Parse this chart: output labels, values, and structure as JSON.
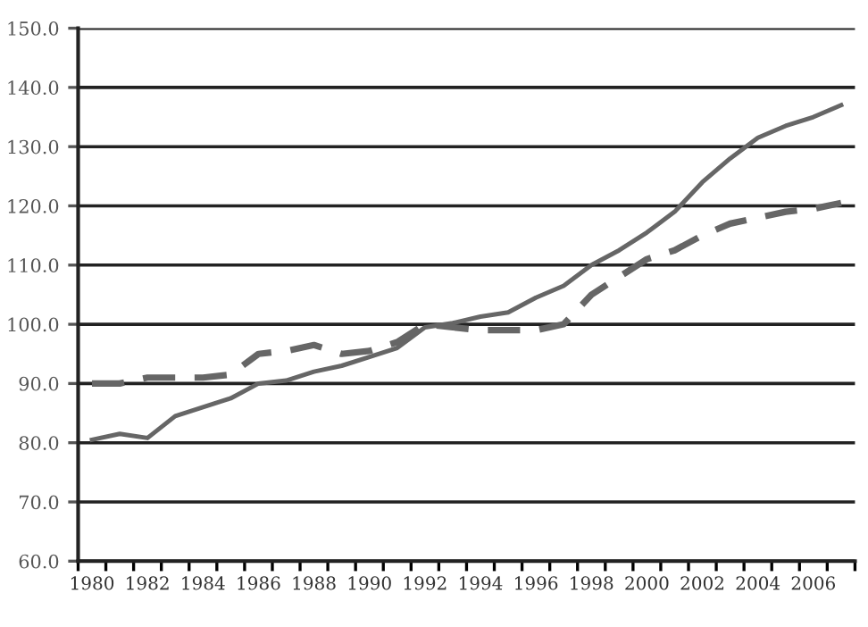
{
  "chart_data": {
    "type": "line",
    "categories": [
      "1980",
      null,
      "1982",
      null,
      "1984",
      null,
      "1986",
      null,
      "1988",
      null,
      "1990",
      null,
      "1992",
      null,
      "1994",
      null,
      "1996",
      null,
      "1998",
      null,
      "2000",
      null,
      "2002",
      null,
      "2004",
      null,
      "2006",
      null
    ],
    "series": [
      {
        "color": "#666666",
        "line_style": "solid",
        "values": [
          80.5,
          81.5,
          80.8,
          84.5,
          86,
          87.5,
          90,
          90.5,
          92,
          93,
          94.5,
          96,
          99.5,
          100.2,
          101.3,
          102,
          104.5,
          106.5,
          110,
          112.5,
          115.5,
          119,
          124,
          128,
          131.5,
          133.5,
          135,
          137
        ]
      },
      {
        "color": "#666666",
        "line_style": "dashed",
        "values": [
          90,
          90,
          91,
          91,
          91,
          91.5,
          95,
          95.5,
          96.5,
          95,
          95.5,
          97,
          100,
          99.5,
          99,
          99,
          99,
          100,
          105,
          108,
          111,
          112.5,
          115,
          117,
          118,
          119,
          119.5,
          120.5
        ]
      }
    ],
    "ylim": [
      60,
      150
    ],
    "yticks": [
      {
        "value": 60,
        "label": "60.0"
      },
      {
        "value": 70,
        "label": "70.0"
      },
      {
        "value": 80,
        "label": "80.0"
      },
      {
        "value": 90,
        "label": "90.0"
      },
      {
        "value": 100,
        "label": "100.0"
      },
      {
        "value": 110,
        "label": "110.0"
      },
      {
        "value": 120,
        "label": "120.0"
      },
      {
        "value": 130,
        "label": "130.0"
      },
      {
        "value": 140,
        "label": "140.0"
      },
      {
        "value": 150,
        "label": "150.0"
      }
    ],
    "grid": "y"
  }
}
